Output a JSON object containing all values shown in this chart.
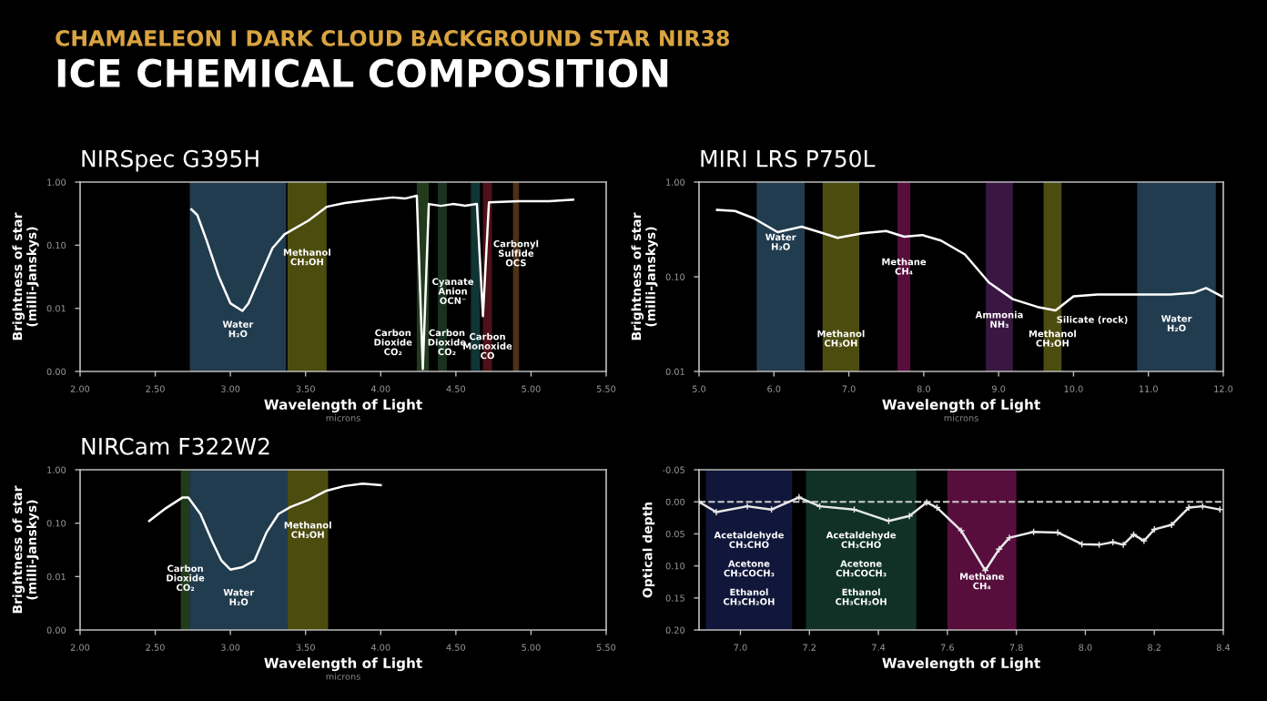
{
  "chart_data": [
    {
      "type": "other",
      "title": "ICE CHEMICAL COMPOSITION",
      "subtitle": "CHAMAELEON I DARK CLOUD BACKGROUND STAR NIR38"
    },
    {
      "type": "line",
      "title": "NIRSpec G395H",
      "xlabel": "Wavelength of Light",
      "ylabel": "Brightness of star\n(milli-Janskys)",
      "annotations": [
        "microns"
      ],
      "log": "y",
      "grid": false,
      "xlim": [
        2.0,
        5.5
      ],
      "xticks": [
        {
          "value": 2.0,
          "label": "2.00"
        },
        {
          "value": 2.5,
          "label": "2.50"
        },
        {
          "value": 3.0,
          "label": "3.00"
        },
        {
          "value": 3.5,
          "label": "3.50"
        },
        {
          "value": 4.0,
          "label": "4.00"
        },
        {
          "value": 4.5,
          "label": "4.50"
        },
        {
          "value": 5.0,
          "label": "5.00"
        },
        {
          "value": 5.5,
          "label": "5.50"
        }
      ],
      "ylim": [
        0.001,
        1
      ],
      "yticks": [
        {
          "value": 0.001,
          "label": "0.00"
        },
        {
          "value": 0.01,
          "label": "0.01"
        },
        {
          "value": 0.1,
          "label": "0.10"
        },
        {
          "value": 1,
          "label": "1.00"
        }
      ],
      "series": [
        {
          "color": "#ffffff",
          "x": [
            2.74,
            2.78,
            2.84,
            2.92,
            3.0,
            3.08,
            3.12,
            3.2,
            3.28,
            3.36,
            3.52,
            3.64,
            3.76,
            3.92,
            4.08,
            4.16,
            4.24,
            4.28,
            4.32,
            4.4,
            4.48,
            4.56,
            4.64,
            4.68,
            4.72,
            4.92,
            5.12,
            5.28
          ],
          "values": [
            0.37,
            0.3,
            0.122,
            0.033,
            0.012,
            0.0091,
            0.012,
            0.033,
            0.09,
            0.149,
            0.246,
            0.406,
            0.467,
            0.517,
            0.571,
            0.548,
            0.606,
            0.0011,
            0.449,
            0.42,
            0.449,
            0.423,
            0.449,
            0.0075,
            0.477,
            0.496,
            0.496,
            0.527
          ]
        }
      ],
      "bands": [
        {
          "axis": "x",
          "from": 2.73,
          "to": 3.37,
          "label": "Water\nH₂O",
          "color": "#3d6e8f"
        },
        {
          "axis": "x",
          "from": 3.38,
          "to": 3.64,
          "label": "Methanol\nCH₃OH",
          "color": "#8c8a1c"
        },
        {
          "axis": "x",
          "from": 4.24,
          "to": 4.32,
          "label": "Carbon\nDioxide\nCO₂",
          "color": "#3f6b35"
        },
        {
          "axis": "x",
          "from": 4.38,
          "to": 4.44,
          "label": "Carbon\nDioxide\nCO₂",
          "color": "#2f5a3a"
        },
        {
          "axis": "x",
          "from": 4.6,
          "to": 4.66,
          "label": "Cyanate\nAnion\nOCN⁻",
          "color": "#1f5f5f"
        },
        {
          "axis": "x",
          "from": 4.68,
          "to": 4.74,
          "label": "Carbon\nMonoxide\nCO",
          "color": "#8c1f2a"
        },
        {
          "axis": "x",
          "from": 4.88,
          "to": 4.92,
          "label": "Carbonyl\nSulfide\nOCS",
          "color": "#8c5a2a"
        }
      ]
    },
    {
      "type": "line",
      "title": "MIRI LRS P750L",
      "xlabel": "Wavelength of Light",
      "ylabel": "Brightness of star\n(milli-Janskys)",
      "annotations": [
        "microns",
        "Silicate (rock)"
      ],
      "log": "y",
      "grid": false,
      "xlim": [
        5,
        12
      ],
      "xticks": [
        {
          "value": 5,
          "label": "5.0"
        },
        {
          "value": 6,
          "label": "6.0"
        },
        {
          "value": 7,
          "label": "7.0"
        },
        {
          "value": 8,
          "label": "8.0"
        },
        {
          "value": 9,
          "label": "9.0"
        },
        {
          "value": 10,
          "label": "10.0"
        },
        {
          "value": 11,
          "label": "11.0"
        },
        {
          "value": 12,
          "label": "12.0"
        }
      ],
      "ylim": [
        0.01,
        1
      ],
      "yticks": [
        {
          "value": 0.01,
          "label": "0.01"
        },
        {
          "value": 0.1,
          "label": "0.10"
        },
        {
          "value": 1,
          "label": "1.00"
        }
      ],
      "series": [
        {
          "color": "#ffffff",
          "x": [
            5.24,
            5.48,
            5.73,
            6.05,
            6.37,
            6.61,
            6.85,
            7.18,
            7.5,
            7.74,
            7.98,
            8.23,
            8.55,
            8.87,
            9.19,
            9.52,
            9.76,
            10.0,
            10.32,
            10.65,
            10.97,
            11.29,
            11.61,
            11.77,
            11.98
          ],
          "values": [
            0.508,
            0.495,
            0.415,
            0.296,
            0.338,
            0.296,
            0.258,
            0.288,
            0.304,
            0.265,
            0.276,
            0.241,
            0.172,
            0.087,
            0.058,
            0.048,
            0.044,
            0.062,
            0.065,
            0.065,
            0.065,
            0.065,
            0.068,
            0.076,
            0.062
          ]
        }
      ],
      "bands": [
        {
          "axis": "x",
          "from": 5.77,
          "to": 6.41,
          "label": "Water\nH₂O",
          "color": "#3d6e8f"
        },
        {
          "axis": "x",
          "from": 6.65,
          "to": 7.14,
          "label": "Methanol\nCH₃OH",
          "color": "#8c8a1c"
        },
        {
          "axis": "x",
          "from": 7.65,
          "to": 7.82,
          "label": "Methane\nCH₄",
          "color": "#a01a70"
        },
        {
          "axis": "x",
          "from": 8.83,
          "to": 9.19,
          "label": "Ammonia\nNH₃",
          "color": "#6a2a7a"
        },
        {
          "axis": "x",
          "from": 9.6,
          "to": 9.84,
          "label": "Methanol\nCH₃OH",
          "color": "#8c8a1c"
        },
        {
          "axis": "x",
          "from": 10.85,
          "to": 11.9,
          "label": "Water\nH₂O",
          "color": "#3d6e8f"
        }
      ]
    },
    {
      "type": "line",
      "title": "NIRCam F322W2",
      "xlabel": "Wavelength of Light",
      "ylabel": "Brightness of star\n(milli-Janskys)",
      "annotations": [
        "microns"
      ],
      "log": "y",
      "grid": false,
      "xlim": [
        2.0,
        5.5
      ],
      "xticks": [
        {
          "value": 2.0,
          "label": "2.00"
        },
        {
          "value": 2.5,
          "label": "2.50"
        },
        {
          "value": 3.0,
          "label": "3.00"
        },
        {
          "value": 3.5,
          "label": "3.50"
        },
        {
          "value": 4.0,
          "label": "4.00"
        },
        {
          "value": 4.5,
          "label": "4.50"
        },
        {
          "value": 5.0,
          "label": "5.00"
        },
        {
          "value": 5.5,
          "label": "5.50"
        }
      ],
      "ylim": [
        0.001,
        1
      ],
      "yticks": [
        {
          "value": 0.001,
          "label": "0.00"
        },
        {
          "value": 0.01,
          "label": "0.01"
        },
        {
          "value": 0.1,
          "label": "0.10"
        },
        {
          "value": 1,
          "label": "1.00"
        }
      ],
      "series": [
        {
          "color": "#ffffff",
          "x": [
            2.46,
            2.56,
            2.68,
            2.72,
            2.8,
            2.88,
            2.94,
            3.0,
            3.08,
            3.16,
            3.24,
            3.32,
            3.4,
            3.52,
            3.64,
            3.76,
            3.88,
            4.0
          ],
          "values": [
            0.11,
            0.182,
            0.301,
            0.301,
            0.149,
            0.045,
            0.02,
            0.0135,
            0.015,
            0.02,
            0.067,
            0.149,
            0.201,
            0.272,
            0.406,
            0.496,
            0.548,
            0.516
          ]
        }
      ],
      "bands": [
        {
          "axis": "x",
          "from": 2.67,
          "to": 2.73,
          "label": "Carbon\nDioxide\nCO₂",
          "color": "#3f6b35"
        },
        {
          "axis": "x",
          "from": 2.73,
          "to": 3.38,
          "label": "Water\nH₂O",
          "color": "#3d6e8f"
        },
        {
          "axis": "x",
          "from": 3.38,
          "to": 3.65,
          "label": "Methanol\nCH₃OH",
          "color": "#8c8a1c"
        }
      ]
    },
    {
      "type": "line",
      "xlabel": "Wavelength of Light",
      "ylabel": "Optical depth",
      "grid": false,
      "marker": "cross",
      "xlim": [
        6.88,
        8.4
      ],
      "xticks": [
        {
          "value": 7.0,
          "label": "7.0"
        },
        {
          "value": 7.2,
          "label": "7.2"
        },
        {
          "value": 7.4,
          "label": "7.4"
        },
        {
          "value": 7.6,
          "label": "7.6"
        },
        {
          "value": 7.8,
          "label": "7.8"
        },
        {
          "value": 8.0,
          "label": "8.0"
        },
        {
          "value": 8.2,
          "label": "8.2"
        },
        {
          "value": 8.4,
          "label": "8.4"
        }
      ],
      "ylim": [
        0.2,
        -0.05
      ],
      "yticks": [
        {
          "value": -0.05,
          "label": "-0.05"
        },
        {
          "value": 0.0,
          "label": "0.00"
        },
        {
          "value": 0.05,
          "label": "0.05"
        },
        {
          "value": 0.1,
          "label": "0.10"
        },
        {
          "value": 0.15,
          "label": "0.15"
        },
        {
          "value": 0.2,
          "label": "0.20"
        }
      ],
      "series": [
        {
          "color": "#e8e8e8",
          "x": [
            6.88,
            6.93,
            7.02,
            7.09,
            7.17,
            7.23,
            7.33,
            7.43,
            7.49,
            7.54,
            7.57,
            7.64,
            7.71,
            7.75,
            7.78,
            7.85,
            7.92,
            7.99,
            8.04,
            8.08,
            8.11,
            8.14,
            8.17,
            8.2,
            8.25,
            8.3,
            8.34,
            8.39
          ],
          "values": [
            0.0,
            0.016,
            0.007,
            0.012,
            -0.007,
            0.007,
            0.012,
            0.03,
            0.022,
            0.001,
            0.009,
            0.045,
            0.107,
            0.074,
            0.056,
            0.047,
            0.048,
            0.066,
            0.067,
            0.063,
            0.067,
            0.051,
            0.061,
            0.043,
            0.036,
            0.009,
            0.007,
            0.012
          ]
        }
      ],
      "ref_lines": [
        {
          "axis": "y",
          "value": 0.0,
          "color": "#cccccc",
          "line_style": "dashed"
        }
      ],
      "bands": [
        {
          "axis": "x",
          "from": 6.9,
          "to": 7.15,
          "label": "Acetaldehyde\nCH₃CHO\n\nAcetone\nCH₃COCH₃\n\nEthanol\nCH₃CH₂OH",
          "color": "#1f2a6a"
        },
        {
          "axis": "x",
          "from": 7.19,
          "to": 7.51,
          "label": "Acetaldehyde\nCH₃CHO\n\nAcetone\nCH₃COCH₃\n\nEthanol\nCH₃CH₂OH",
          "color": "#1f5a45"
        },
        {
          "axis": "x",
          "from": 7.6,
          "to": 7.8,
          "label": "Methane\nCH₄",
          "color": "#a01a70"
        }
      ]
    }
  ]
}
